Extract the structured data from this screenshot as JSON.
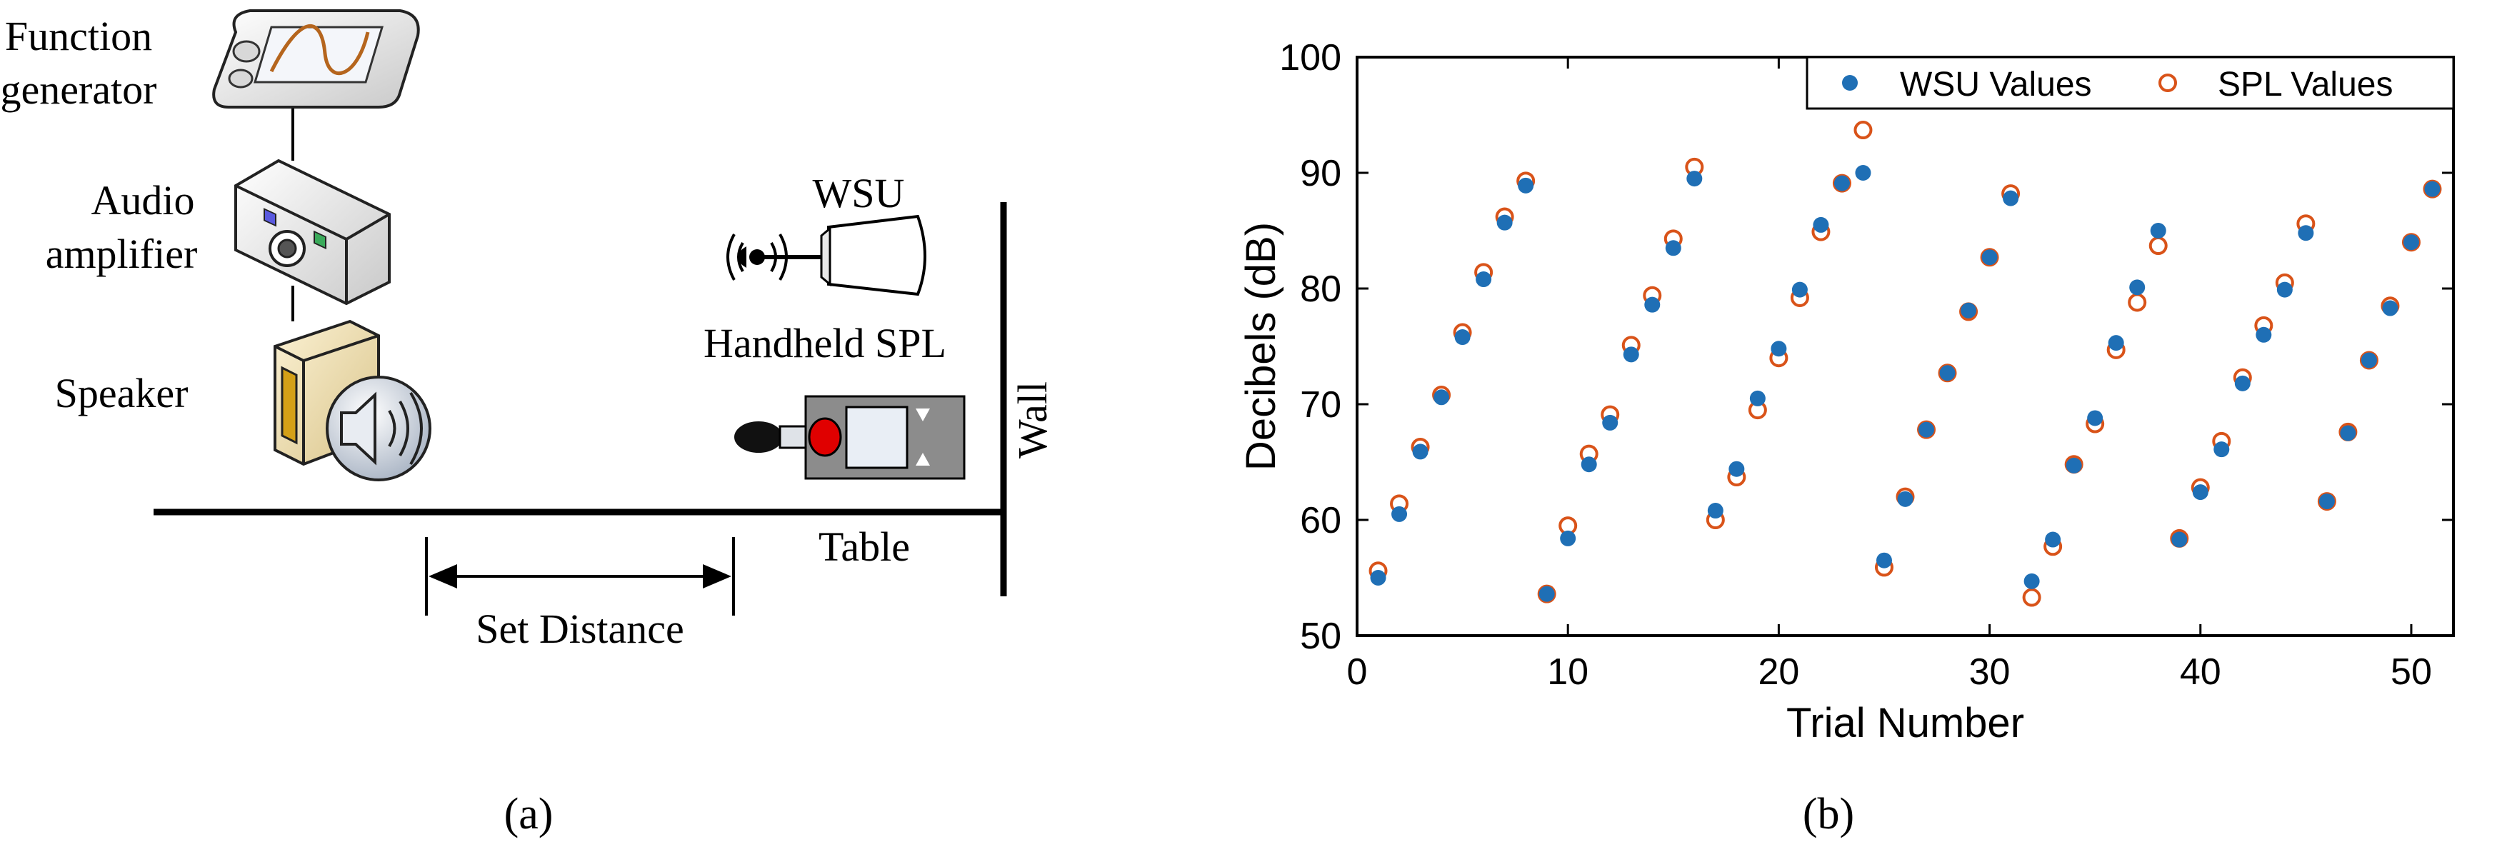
{
  "panel_a": {
    "function_generator_label_1": "Function",
    "function_generator_label_2": "generator",
    "audio_amplifier_label_1": "Audio",
    "audio_amplifier_label_2": "amplifier",
    "speaker_label": "Speaker",
    "wsu_label": "WSU",
    "handheld_spl_label": "Handheld SPL",
    "wall_label": "Wall",
    "table_label": "Table",
    "set_distance_label": "Set Distance",
    "caption": "(a)"
  },
  "panel_b": {
    "caption": "(b)"
  },
  "colors": {
    "wsu_series": "#1f6fb5",
    "spl_series": "#d95319",
    "speaker_box": "#f3e3b3",
    "speaker_cone": "#d4a017",
    "spl_body": "#8c8c8c",
    "spl_red": "#e00000"
  },
  "chart_data": {
    "type": "scatter",
    "title": "",
    "xlabel": "Trial Number",
    "ylabel": "Decibels (dB)",
    "xlim": [
      0,
      52
    ],
    "ylim": [
      50,
      100
    ],
    "xticks": [
      "0",
      "10",
      "20",
      "30",
      "40",
      "50"
    ],
    "yticks": [
      "50",
      "60",
      "70",
      "80",
      "90",
      "100"
    ],
    "legend_position": "top-right",
    "x": [
      1,
      2,
      3,
      4,
      5,
      6,
      7,
      8,
      9,
      10,
      11,
      12,
      13,
      14,
      15,
      16,
      17,
      18,
      19,
      20,
      21,
      22,
      23,
      24,
      25,
      26,
      27,
      28,
      29,
      30,
      31,
      32,
      33,
      34,
      35,
      36,
      37,
      38,
      39,
      40,
      41,
      42,
      43,
      44,
      45,
      46,
      47,
      48,
      49,
      50,
      51
    ],
    "series": [
      {
        "name": "WSU Values",
        "marker": "filled-circle",
        "values": [
          55.0,
          60.5,
          65.9,
          70.6,
          75.8,
          80.8,
          85.7,
          88.9,
          53.6,
          58.4,
          64.8,
          68.4,
          74.3,
          78.6,
          83.5,
          89.5,
          60.8,
          64.4,
          70.5,
          74.8,
          79.9,
          85.5,
          89.1,
          90.0,
          56.5,
          61.8,
          67.8,
          72.7,
          78.1,
          82.7,
          87.8,
          54.7,
          58.3,
          64.7,
          68.8,
          75.3,
          80.1,
          85.0,
          58.3,
          62.4,
          66.1,
          71.8,
          76.0,
          79.9,
          84.8,
          61.6,
          67.5,
          73.8,
          78.3,
          84.0,
          88.6
        ]
      },
      {
        "name": "SPL Values",
        "marker": "open-circle",
        "values": [
          55.6,
          61.4,
          66.3,
          70.8,
          76.2,
          81.4,
          86.2,
          89.3,
          53.6,
          59.5,
          65.7,
          69.1,
          75.1,
          79.4,
          84.3,
          90.5,
          60.0,
          63.7,
          69.5,
          74.0,
          79.2,
          84.9,
          89.1,
          93.7,
          55.9,
          62.0,
          67.8,
          72.7,
          78.0,
          82.7,
          88.2,
          53.3,
          57.7,
          64.8,
          68.3,
          74.7,
          78.8,
          83.7,
          58.4,
          62.8,
          66.8,
          72.3,
          76.8,
          80.5,
          85.6,
          61.6,
          67.6,
          73.8,
          78.5,
          84.0,
          88.6
        ]
      }
    ]
  }
}
